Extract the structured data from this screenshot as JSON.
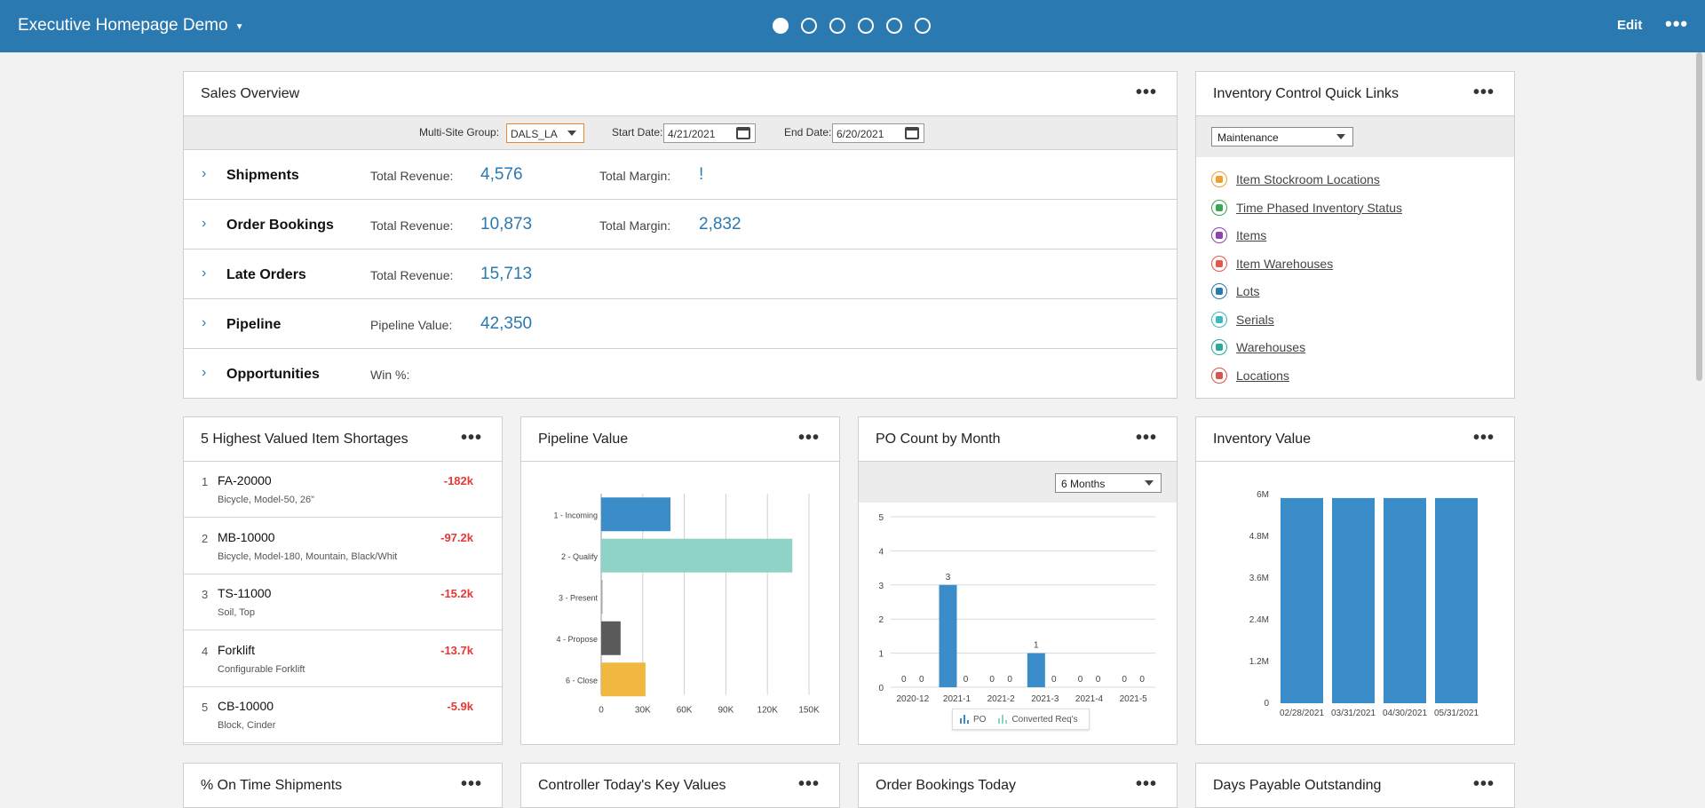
{
  "header": {
    "title": "Executive Homepage Demo",
    "edit_label": "Edit",
    "page_dots": 6,
    "active_dot": 0
  },
  "sales_overview": {
    "title": "Sales Overview",
    "filters": {
      "site_group_label": "Multi-Site Group:",
      "site_group_value": "DALS_LA",
      "start_label": "Start Date:",
      "start_value": "4/21/2021",
      "end_label": "End Date:",
      "end_value": "6/20/2021"
    },
    "rows": [
      {
        "name": "Shipments",
        "label1": "Total Revenue:",
        "value1": "4,576",
        "label2": "Total Margin:",
        "value2": "!"
      },
      {
        "name": "Order Bookings",
        "label1": "Total Revenue:",
        "value1": "10,873",
        "label2": "Total Margin:",
        "value2": "2,832"
      },
      {
        "name": "Late Orders",
        "label1": "Total Revenue:",
        "value1": "15,713",
        "label2": "",
        "value2": ""
      },
      {
        "name": "Pipeline",
        "label1": "Pipeline Value:",
        "value1": "42,350",
        "label2": "",
        "value2": ""
      },
      {
        "name": "Opportunities",
        "label1": "Win %:",
        "value1": "",
        "label2": "",
        "value2": ""
      }
    ]
  },
  "quick_links": {
    "title": "Inventory Control Quick Links",
    "select_value": "Maintenance",
    "items": [
      {
        "label": "Item Stockroom Locations",
        "icon": "stockroom-icon",
        "color": "#f0a030"
      },
      {
        "label": "Time Phased Inventory Status",
        "icon": "inventory-status-icon",
        "color": "#3aa655"
      },
      {
        "label": "Items",
        "icon": "cart-icon",
        "color": "#8e44ad"
      },
      {
        "label": "Item Warehouses",
        "icon": "warehouse-icon",
        "color": "#e8564a"
      },
      {
        "label": "Lots",
        "icon": "trend-icon",
        "color": "#2a79b0"
      },
      {
        "label": "Serials",
        "icon": "barcode-icon",
        "color": "#3cb8c0"
      },
      {
        "label": "Warehouses",
        "icon": "boxes-icon",
        "color": "#2aa89a"
      },
      {
        "label": "Locations",
        "icon": "tower-icon",
        "color": "#d9534f"
      }
    ]
  },
  "shortages": {
    "title": "5 Highest Valued Item Shortages",
    "items": [
      {
        "rank": "1",
        "code": "FA-20000",
        "desc": "Bicycle, Model-50, 26\"",
        "value": "-182k"
      },
      {
        "rank": "2",
        "code": "MB-10000",
        "desc": "Bicycle, Model-180, Mountain, Black/Whit",
        "value": "-97.2k"
      },
      {
        "rank": "3",
        "code": "TS-11000",
        "desc": "Soil, Top",
        "value": "-15.2k"
      },
      {
        "rank": "4",
        "code": "Forklift",
        "desc": "Configurable Forklift",
        "value": "-13.7k"
      },
      {
        "rank": "5",
        "code": "CB-10000",
        "desc": "Block, Cinder",
        "value": "-5.9k"
      }
    ]
  },
  "pipeline": {
    "title": "Pipeline Value"
  },
  "po_count": {
    "title": "PO Count by Month",
    "select_value": "6 Months",
    "legend": [
      "PO",
      "Converted Req's"
    ]
  },
  "inventory_value": {
    "title": "Inventory Value"
  },
  "bottom_panels": [
    {
      "title": "% On Time Shipments"
    },
    {
      "title": "Controller Today's Key Values"
    },
    {
      "title": "Order Bookings Today"
    },
    {
      "title": "Days Payable Outstanding"
    }
  ],
  "chart_data": [
    {
      "id": "pipeline",
      "type": "bar",
      "orientation": "horizontal",
      "categories": [
        "1 - Incoming",
        "2 - Qualify",
        "3 - Present",
        "4 - Propose",
        "6 - Close"
      ],
      "values": [
        50000,
        138000,
        1000,
        14000,
        32000
      ],
      "colors": [
        "#3a8dc9",
        "#8fd3c8",
        "#aaaaaa",
        "#5a5a5a",
        "#f0b840"
      ],
      "xticks": [
        "0",
        "30K",
        "60K",
        "90K",
        "120K",
        "150K"
      ],
      "xlim": [
        0,
        150000
      ]
    },
    {
      "id": "po_count",
      "type": "bar",
      "categories": [
        "2020-12",
        "2021-1",
        "2021-2",
        "2021-3",
        "2021-4",
        "2021-5"
      ],
      "series": [
        {
          "name": "PO",
          "values": [
            0,
            3,
            0,
            1,
            0,
            0
          ],
          "color": "#3a8dc9"
        },
        {
          "name": "Converted Req's",
          "values": [
            0,
            0,
            0,
            0,
            0,
            0
          ],
          "color": "#8fd3c8"
        }
      ],
      "yticks": [
        "0",
        "1",
        "2",
        "3",
        "4",
        "5"
      ],
      "ylim": [
        0,
        5
      ]
    },
    {
      "id": "inventory_value",
      "type": "bar",
      "categories": [
        "02/28/2021",
        "03/31/2021",
        "04/30/2021",
        "05/31/2021"
      ],
      "values": [
        5900000,
        5900000,
        5900000,
        5900000
      ],
      "color": "#3a8dc9",
      "yticks": [
        "0",
        "1.2M",
        "2.4M",
        "3.6M",
        "4.8M",
        "6M"
      ],
      "ylim": [
        0,
        6000000
      ]
    }
  ]
}
